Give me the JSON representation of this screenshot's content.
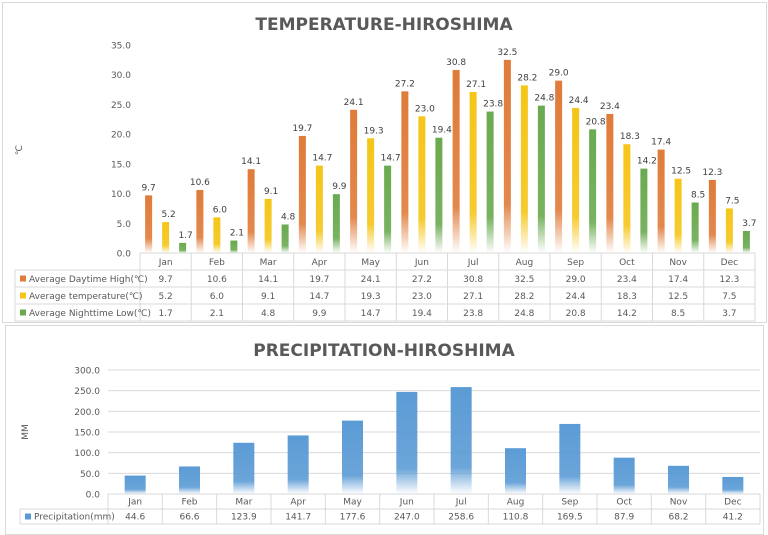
{
  "chart_data": [
    {
      "type": "bar",
      "title": "TEMPERATURE-HIROSHIMA",
      "ylabel": "℃",
      "xlabel": "",
      "ylim": [
        0,
        35
      ],
      "yticks": [
        "0.0",
        "5.0",
        "10.0",
        "15.0",
        "20.0",
        "25.0",
        "30.0",
        "35.0"
      ],
      "grid": false,
      "legend": "data-table",
      "categories": [
        "Jan",
        "Feb",
        "Mar",
        "Apr",
        "May",
        "Jun",
        "Jul",
        "Aug",
        "Sep",
        "Oct",
        "Nov",
        "Dec"
      ],
      "series": [
        {
          "name": "Average Daytime High(℃)",
          "color": "#e07b39",
          "values": [
            9.7,
            10.6,
            14.1,
            19.7,
            24.1,
            27.2,
            30.8,
            32.5,
            29.0,
            23.4,
            17.4,
            12.3
          ]
        },
        {
          "name": "Average temperature(℃)",
          "color": "#f5c518",
          "values": [
            5.2,
            6.0,
            9.1,
            14.7,
            19.3,
            23.0,
            27.1,
            28.2,
            24.4,
            18.3,
            12.5,
            7.5
          ]
        },
        {
          "name": "Average Nighttime Low(℃)",
          "color": "#6aaa4f",
          "values": [
            1.7,
            2.1,
            4.8,
            9.9,
            14.7,
            19.4,
            23.8,
            24.8,
            20.8,
            14.2,
            8.5,
            3.7
          ]
        }
      ]
    },
    {
      "type": "bar",
      "title": "PRECIPITATION-HIROSHIMA",
      "ylabel": "MM",
      "xlabel": "",
      "ylim": [
        0,
        300
      ],
      "yticks": [
        "0.0",
        "50.0",
        "100.0",
        "150.0",
        "200.0",
        "250.0",
        "300.0"
      ],
      "grid": true,
      "legend": "data-table",
      "categories": [
        "Jan",
        "Feb",
        "Mar",
        "Apr",
        "May",
        "Jun",
        "Jul",
        "Aug",
        "Sep",
        "Oct",
        "Nov",
        "Dec"
      ],
      "series": [
        {
          "name": "Precipitation(mm)",
          "color": "#5b9bd5",
          "values": [
            44.6,
            66.6,
            123.9,
            141.7,
            177.6,
            247.0,
            258.6,
            110.8,
            169.5,
            87.9,
            68.2,
            41.2
          ]
        }
      ]
    }
  ]
}
